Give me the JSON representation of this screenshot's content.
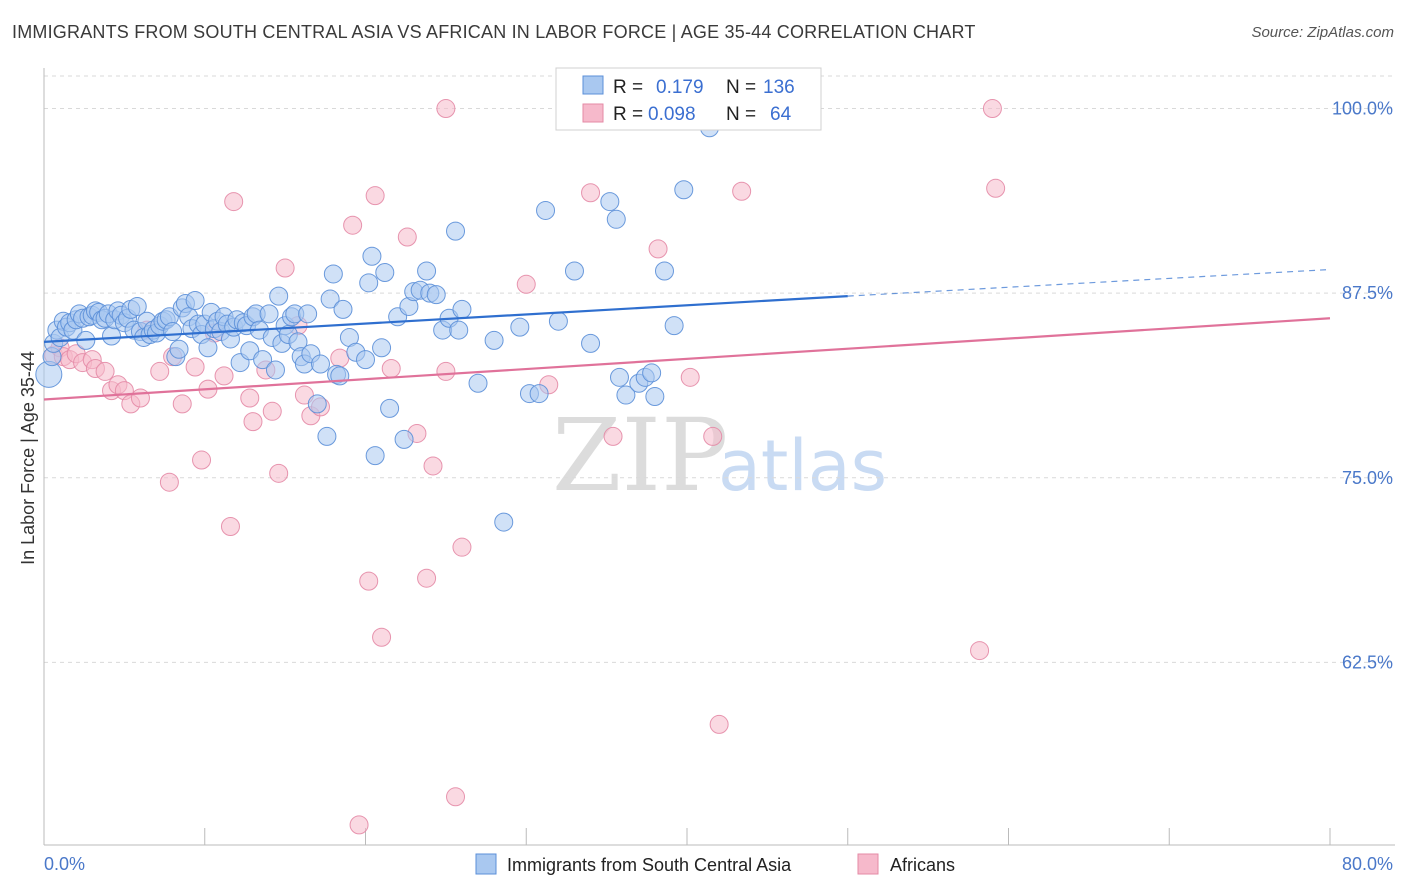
{
  "title": "IMMIGRANTS FROM SOUTH CENTRAL ASIA VS AFRICAN IN LABOR FORCE | AGE 35-44 CORRELATION CHART",
  "source": "Source: ZipAtlas.com",
  "watermark": {
    "zip": "ZIP",
    "atlas": "atlas"
  },
  "colors": {
    "blue_fill": "#a9c8f0",
    "blue_stroke": "#5b8fd8",
    "blue_line": "#2f6fcf",
    "pink_fill": "#f6b9cb",
    "pink_stroke": "#e48aa6",
    "pink_line": "#e0729a",
    "grid": "#d9d9d9",
    "axis_text": "#4a78c9"
  },
  "stats": {
    "blue": {
      "r_label": "R =",
      "r_value": "0.179",
      "n_label": "N =",
      "n_value": "136"
    },
    "pink": {
      "r_label": "R =",
      "r_value": "0.098",
      "n_label": "N =",
      "n_value": "64"
    }
  },
  "chart_data": {
    "type": "scatter",
    "ylabel": "In Labor Force | Age 35-44",
    "xlim": [
      0,
      80
    ],
    "ylim": [
      50,
      102
    ],
    "x_tick_labels": [
      {
        "value": 0,
        "label": "0.0%"
      },
      {
        "value": 80,
        "label": "80.0%"
      }
    ],
    "y_tick_labels": [
      {
        "value": 100,
        "label": "100.0%"
      },
      {
        "value": 87.5,
        "label": "87.5%"
      },
      {
        "value": 75,
        "label": "75.0%"
      },
      {
        "value": 62.5,
        "label": "62.5%"
      }
    ],
    "grid": "horizontal dashed",
    "legend_placement": "bottom-center",
    "series": [
      {
        "name": "Immigrants from South Central Asia",
        "color": "#a9c8f0",
        "trend": {
          "x": [
            0,
            50
          ],
          "y": [
            84.2,
            87.3
          ],
          "dashed_x": [
            50,
            80
          ],
          "dashed_y": [
            87.3,
            89.1
          ]
        },
        "points": [
          [
            0.3,
            82
          ],
          [
            0.5,
            83.2
          ],
          [
            0.6,
            84.1
          ],
          [
            0.8,
            85
          ],
          [
            1.0,
            84.5
          ],
          [
            1.2,
            85.6
          ],
          [
            1.4,
            85.2
          ],
          [
            1.6,
            85.5
          ],
          [
            1.8,
            85.0
          ],
          [
            2.0,
            85.7
          ],
          [
            2.2,
            86.1
          ],
          [
            2.4,
            85.8
          ],
          [
            2.6,
            84.3
          ],
          [
            2.8,
            85.9
          ],
          [
            3.0,
            86.0
          ],
          [
            3.2,
            86.3
          ],
          [
            3.4,
            86.2
          ],
          [
            3.6,
            85.7
          ],
          [
            3.8,
            85.8
          ],
          [
            4.0,
            86.1
          ],
          [
            4.2,
            84.6
          ],
          [
            4.4,
            85.7
          ],
          [
            4.6,
            86.3
          ],
          [
            4.8,
            86.0
          ],
          [
            5.0,
            85.5
          ],
          [
            5.2,
            85.8
          ],
          [
            5.4,
            86.4
          ],
          [
            5.6,
            85.0
          ],
          [
            5.8,
            86.6
          ],
          [
            6.0,
            84.9
          ],
          [
            6.2,
            84.5
          ],
          [
            6.4,
            85.6
          ],
          [
            6.6,
            84.7
          ],
          [
            6.8,
            85.0
          ],
          [
            7.0,
            84.8
          ],
          [
            7.2,
            85.3
          ],
          [
            7.4,
            85.6
          ],
          [
            7.6,
            85.7
          ],
          [
            7.8,
            85.9
          ],
          [
            8.0,
            84.9
          ],
          [
            8.2,
            83.2
          ],
          [
            8.4,
            83.7
          ],
          [
            8.6,
            86.5
          ],
          [
            8.8,
            86.8
          ],
          [
            9.0,
            85.9
          ],
          [
            9.2,
            85.1
          ],
          [
            9.4,
            87.0
          ],
          [
            9.6,
            85.4
          ],
          [
            9.8,
            84.7
          ],
          [
            10.0,
            85.4
          ],
          [
            10.2,
            83.8
          ],
          [
            10.4,
            86.2
          ],
          [
            10.6,
            85.1
          ],
          [
            10.8,
            85.6
          ],
          [
            11.0,
            84.9
          ],
          [
            11.2,
            85.9
          ],
          [
            11.4,
            85.4
          ],
          [
            11.6,
            84.4
          ],
          [
            11.8,
            85.2
          ],
          [
            12.0,
            85.7
          ],
          [
            12.2,
            82.8
          ],
          [
            12.4,
            85.5
          ],
          [
            12.6,
            85.3
          ],
          [
            12.8,
            83.6
          ],
          [
            13.0,
            85.9
          ],
          [
            13.2,
            86.1
          ],
          [
            13.4,
            85.0
          ],
          [
            13.6,
            83.0
          ],
          [
            14.0,
            86.1
          ],
          [
            14.2,
            84.5
          ],
          [
            14.4,
            82.3
          ],
          [
            14.6,
            87.3
          ],
          [
            14.8,
            84.1
          ],
          [
            15.0,
            85.3
          ],
          [
            15.2,
            84.7
          ],
          [
            15.4,
            85.9
          ],
          [
            15.6,
            86.1
          ],
          [
            15.8,
            84.2
          ],
          [
            16.0,
            83.2
          ],
          [
            16.2,
            82.7
          ],
          [
            16.4,
            86.1
          ],
          [
            16.6,
            83.4
          ],
          [
            17.0,
            80.0
          ],
          [
            17.2,
            82.7
          ],
          [
            17.6,
            77.8
          ],
          [
            17.8,
            87.1
          ],
          [
            18.0,
            88.8
          ],
          [
            18.2,
            82.0
          ],
          [
            18.4,
            81.9
          ],
          [
            18.6,
            86.4
          ],
          [
            19.0,
            84.5
          ],
          [
            19.4,
            83.5
          ],
          [
            20.0,
            83.0
          ],
          [
            20.2,
            88.2
          ],
          [
            20.4,
            90.0
          ],
          [
            20.6,
            76.5
          ],
          [
            21.0,
            83.8
          ],
          [
            21.2,
            88.9
          ],
          [
            21.5,
            79.7
          ],
          [
            22.0,
            85.9
          ],
          [
            22.4,
            77.6
          ],
          [
            22.7,
            86.6
          ],
          [
            23.0,
            87.6
          ],
          [
            23.4,
            87.7
          ],
          [
            23.8,
            89.0
          ],
          [
            24.0,
            87.5
          ],
          [
            24.4,
            87.4
          ],
          [
            24.8,
            85.0
          ],
          [
            25.2,
            85.8
          ],
          [
            25.6,
            91.7
          ],
          [
            25.8,
            85.0
          ],
          [
            26.0,
            86.4
          ],
          [
            27.0,
            81.4
          ],
          [
            28.0,
            84.3
          ],
          [
            28.6,
            72.0
          ],
          [
            29.6,
            85.2
          ],
          [
            30.2,
            80.7
          ],
          [
            30.8,
            80.7
          ],
          [
            31.2,
            93.1
          ],
          [
            32.0,
            85.6
          ],
          [
            33.0,
            89.0
          ],
          [
            34.0,
            84.1
          ],
          [
            35.2,
            93.7
          ],
          [
            35.6,
            92.5
          ],
          [
            35.8,
            81.8
          ],
          [
            36.2,
            80.6
          ],
          [
            37.0,
            81.4
          ],
          [
            37.4,
            81.8
          ],
          [
            37.8,
            82.1
          ],
          [
            38.0,
            80.5
          ],
          [
            38.6,
            89.0
          ],
          [
            39.2,
            85.3
          ],
          [
            39.8,
            94.5
          ],
          [
            41.4,
            98.7
          ],
          [
            34.0,
            100.0
          ],
          [
            43.4,
            100.0
          ]
        ]
      },
      {
        "name": "Africans",
        "color": "#f6b9cb",
        "trend": {
          "x": [
            0,
            80
          ],
          "y": [
            80.3,
            85.8
          ]
        },
        "points": [
          [
            0.6,
            83.3
          ],
          [
            1.0,
            83.8
          ],
          [
            1.2,
            83.2
          ],
          [
            1.6,
            83.0
          ],
          [
            2.0,
            83.4
          ],
          [
            2.4,
            82.8
          ],
          [
            3.0,
            83.0
          ],
          [
            3.2,
            82.4
          ],
          [
            3.8,
            82.2
          ],
          [
            4.2,
            80.9
          ],
          [
            4.6,
            81.3
          ],
          [
            5.0,
            80.9
          ],
          [
            5.4,
            80.0
          ],
          [
            6.0,
            80.4
          ],
          [
            6.4,
            85.0
          ],
          [
            7.2,
            82.2
          ],
          [
            7.8,
            74.7
          ],
          [
            8.0,
            83.2
          ],
          [
            8.6,
            80.0
          ],
          [
            9.4,
            82.5
          ],
          [
            9.8,
            76.2
          ],
          [
            10.2,
            81.0
          ],
          [
            10.6,
            84.8
          ],
          [
            11.2,
            81.9
          ],
          [
            11.6,
            71.7
          ],
          [
            11.8,
            93.7
          ],
          [
            12.8,
            80.4
          ],
          [
            13.0,
            78.8
          ],
          [
            13.8,
            82.3
          ],
          [
            14.2,
            79.5
          ],
          [
            14.6,
            75.3
          ],
          [
            15.0,
            89.2
          ],
          [
            15.8,
            85.3
          ],
          [
            16.2,
            80.6
          ],
          [
            16.6,
            79.2
          ],
          [
            17.2,
            79.8
          ],
          [
            18.4,
            83.1
          ],
          [
            19.2,
            92.1
          ],
          [
            19.6,
            51.5
          ],
          [
            20.2,
            68.0
          ],
          [
            20.6,
            94.1
          ],
          [
            21.0,
            64.2
          ],
          [
            21.6,
            82.4
          ],
          [
            22.6,
            91.3
          ],
          [
            23.2,
            78.0
          ],
          [
            23.8,
            68.2
          ],
          [
            24.2,
            75.8
          ],
          [
            25.0,
            82.2
          ],
          [
            25.6,
            53.4
          ],
          [
            26.0,
            70.3
          ],
          [
            25.0,
            100.0
          ],
          [
            30.0,
            88.1
          ],
          [
            31.4,
            81.3
          ],
          [
            34.0,
            94.3
          ],
          [
            35.4,
            77.8
          ],
          [
            35.6,
            100.0
          ],
          [
            38.2,
            90.5
          ],
          [
            40.2,
            81.8
          ],
          [
            41.6,
            77.8
          ],
          [
            42.0,
            58.3
          ],
          [
            43.4,
            94.4
          ],
          [
            59.0,
            100.0
          ],
          [
            59.2,
            94.6
          ],
          [
            58.2,
            63.3
          ]
        ]
      }
    ]
  },
  "legend": {
    "blue_label": "Immigrants from South Central Asia",
    "pink_label": "Africans"
  }
}
